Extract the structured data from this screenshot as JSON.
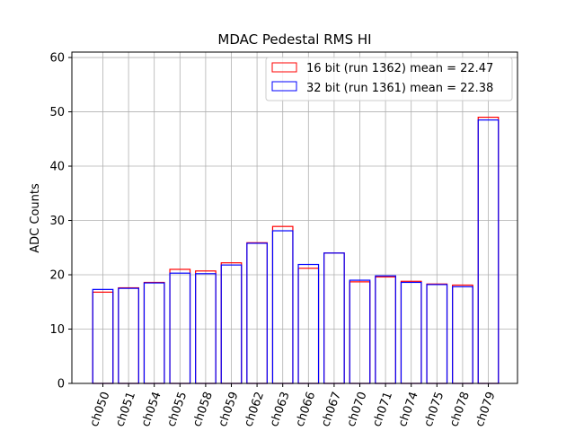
{
  "chart_data": {
    "type": "bar",
    "title": "MDAC Pedestal RMS HI",
    "xlabel": "",
    "ylabel": "ADC Counts",
    "ylim": [
      0,
      61
    ],
    "yticks": [
      0,
      10,
      20,
      30,
      40,
      50,
      60
    ],
    "grid": true,
    "legend_position": "top-right",
    "categories": [
      "ch050",
      "ch051",
      "ch054",
      "ch055",
      "ch058",
      "ch059",
      "ch062",
      "ch063",
      "ch066",
      "ch067",
      "ch070",
      "ch071",
      "ch074",
      "ch075",
      "ch078",
      "ch079"
    ],
    "series": [
      {
        "name": "16 bit (run 1362) mean = 22.47",
        "color": "#ff0000",
        "values": [
          16.8,
          17.6,
          18.6,
          21.0,
          20.7,
          22.2,
          25.9,
          28.9,
          21.2,
          24.0,
          18.7,
          19.6,
          18.8,
          18.3,
          18.1,
          49.0
        ]
      },
      {
        "name": "32 bit (run 1361) mean = 22.38",
        "color": "#0000ff",
        "values": [
          17.3,
          17.5,
          18.5,
          20.3,
          20.2,
          21.8,
          25.8,
          28.1,
          21.9,
          24.0,
          19.0,
          19.8,
          18.6,
          18.2,
          17.8,
          48.5
        ]
      }
    ]
  }
}
